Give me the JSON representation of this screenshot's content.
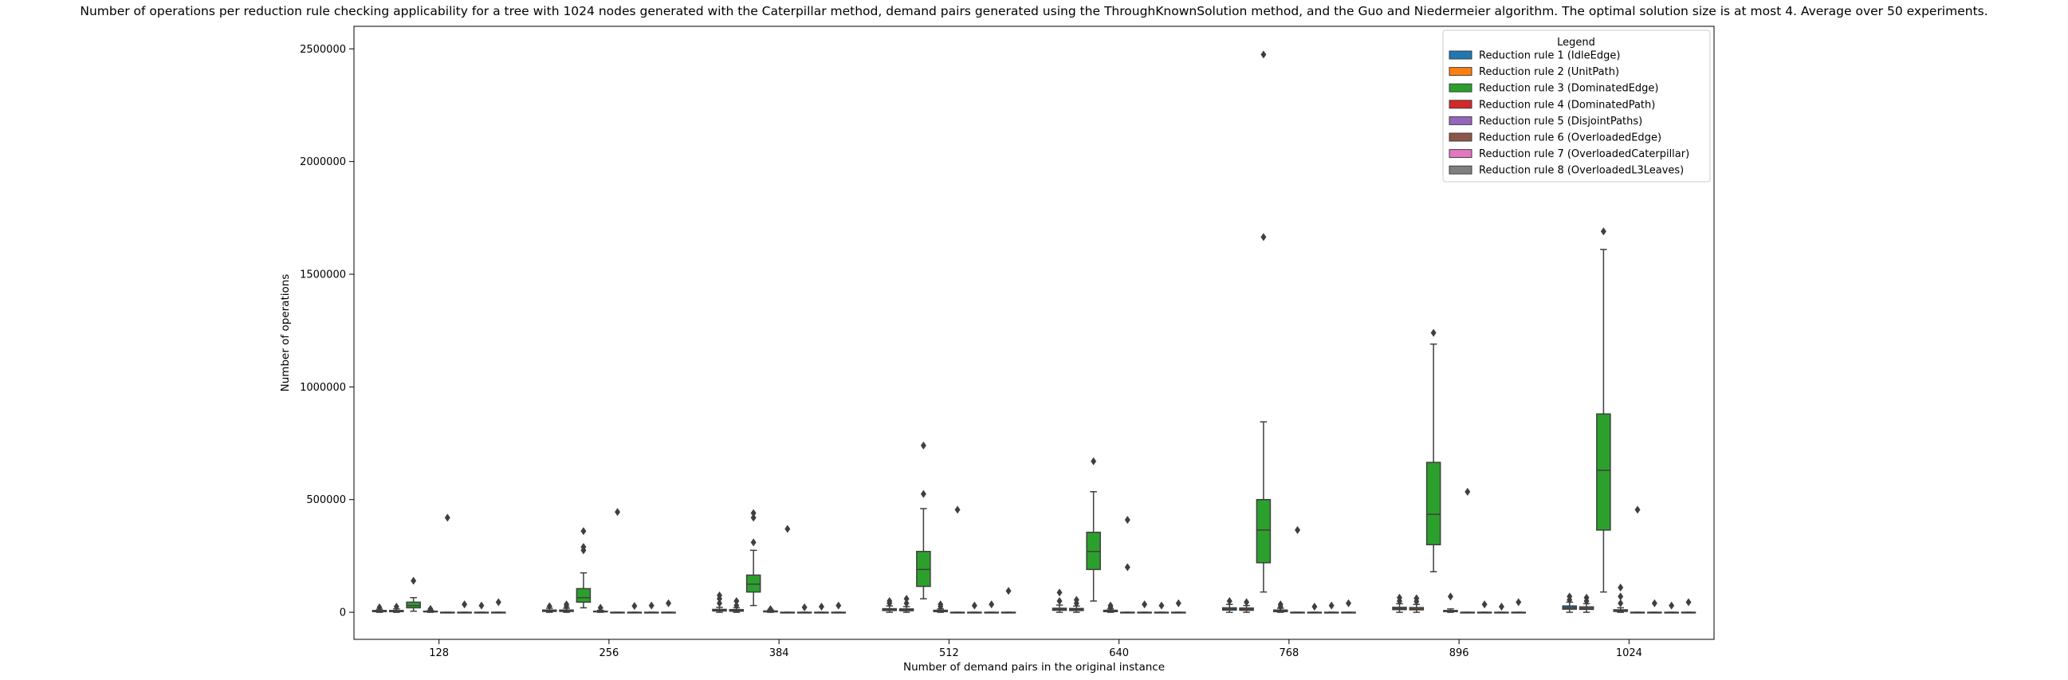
{
  "chart_data": {
    "type": "box",
    "title": "Number of operations per reduction rule checking applicability for a tree with 1024 nodes generated with the Caterpillar method, demand pairs generated using the ThroughKnownSolution method, and the Guo and Niedermeier algorithm. The optimal solution size is at most 4. Average over 50 experiments.",
    "xlabel": "Number of demand pairs in the original instance",
    "ylabel": "Number of operations",
    "ylim": [
      -120000,
      2600000
    ],
    "yticks": [
      0,
      500000,
      1000000,
      1500000,
      2000000,
      2500000
    ],
    "ytick_labels": [
      "0",
      "500000",
      "1000000",
      "1500000",
      "2000000",
      "2500000"
    ],
    "categories": [
      "128",
      "256",
      "384",
      "512",
      "640",
      "768",
      "896",
      "1024"
    ],
    "legend": {
      "title": "Legend",
      "placement": "top-right",
      "entries": [
        "Reduction rule 1 (IdleEdge)",
        "Reduction rule 2 (UnitPath)",
        "Reduction rule 3 (DominatedEdge)",
        "Reduction rule 4 (DominatedPath)",
        "Reduction rule 5 (DisjointPaths)",
        "Reduction rule 6 (OverloadedEdge)",
        "Reduction rule 7 (OverloadedCaterpillar)",
        "Reduction rule 8 (OverloadedL3Leaves)"
      ]
    },
    "series": [
      {
        "color": "#1f77b4",
        "boxes": [
          {
            "q1": 3000,
            "median": 5000,
            "q3": 8000,
            "whislo": 0,
            "whishi": 14000,
            "fliers": [
              22000
            ]
          },
          {
            "q1": 4000,
            "median": 7000,
            "q3": 10000,
            "whislo": 0,
            "whishi": 18000,
            "fliers": [
              27000
            ]
          },
          {
            "q1": 6000,
            "median": 9000,
            "q3": 13000,
            "whislo": 0,
            "whishi": 22000,
            "fliers": [
              40000,
              60000,
              75000
            ]
          },
          {
            "q1": 8000,
            "median": 11000,
            "q3": 16000,
            "whislo": 0,
            "whishi": 28000,
            "fliers": [
              40000,
              50000
            ]
          },
          {
            "q1": 9000,
            "median": 13000,
            "q3": 18000,
            "whislo": 0,
            "whishi": 32000,
            "fliers": [
              50000,
              88000
            ]
          },
          {
            "q1": 10000,
            "median": 14000,
            "q3": 20000,
            "whislo": 0,
            "whishi": 35000,
            "fliers": [
              50000
            ]
          },
          {
            "q1": 12000,
            "median": 16000,
            "q3": 22000,
            "whislo": 0,
            "whishi": 38000,
            "fliers": [
              50000,
              65000
            ]
          },
          {
            "q1": 14000,
            "median": 20000,
            "q3": 28000,
            "whislo": 0,
            "whishi": 45000,
            "fliers": [
              55000,
              70000
            ]
          }
        ]
      },
      {
        "color": "#ff7f0e",
        "boxes": [
          {
            "q1": 3000,
            "median": 5000,
            "q3": 8000,
            "whislo": 0,
            "whishi": 15000,
            "fliers": [
              25000
            ]
          },
          {
            "q1": 4000,
            "median": 7000,
            "q3": 10000,
            "whislo": 0,
            "whishi": 18000,
            "fliers": [
              26000,
              35000
            ]
          },
          {
            "q1": 5000,
            "median": 8000,
            "q3": 12000,
            "whislo": 0,
            "whishi": 20000,
            "fliers": [
              30000,
              50000
            ]
          },
          {
            "q1": 7000,
            "median": 10000,
            "q3": 15000,
            "whislo": 0,
            "whishi": 25000,
            "fliers": [
              40000,
              60000
            ]
          },
          {
            "q1": 8000,
            "median": 12000,
            "q3": 17000,
            "whislo": 0,
            "whishi": 28000,
            "fliers": [
              40000,
              55000
            ]
          },
          {
            "q1": 9000,
            "median": 13000,
            "q3": 19000,
            "whislo": 0,
            "whishi": 30000,
            "fliers": [
              45000
            ]
          },
          {
            "q1": 11000,
            "median": 15000,
            "q3": 21000,
            "whislo": 0,
            "whishi": 35000,
            "fliers": [
              48000,
              62000
            ]
          },
          {
            "q1": 13000,
            "median": 18000,
            "q3": 24000,
            "whislo": 0,
            "whishi": 38000,
            "fliers": [
              50000,
              65000
            ]
          }
        ]
      },
      {
        "color": "#2ca02c",
        "boxes": [
          {
            "q1": 20000,
            "median": 30000,
            "q3": 45000,
            "whislo": 5000,
            "whishi": 65000,
            "fliers": [
              140000
            ]
          },
          {
            "q1": 45000,
            "median": 65000,
            "q3": 105000,
            "whislo": 20000,
            "whishi": 175000,
            "fliers": [
              275000,
              290000,
              360000
            ]
          },
          {
            "q1": 90000,
            "median": 125000,
            "q3": 165000,
            "whislo": 30000,
            "whishi": 275000,
            "fliers": [
              310000,
              420000,
              440000
            ]
          },
          {
            "q1": 115000,
            "median": 190000,
            "q3": 270000,
            "whislo": 60000,
            "whishi": 460000,
            "fliers": [
              525000,
              740000
            ]
          },
          {
            "q1": 190000,
            "median": 270000,
            "q3": 355000,
            "whislo": 50000,
            "whishi": 535000,
            "fliers": [
              670000
            ]
          },
          {
            "q1": 220000,
            "median": 365000,
            "q3": 500000,
            "whislo": 90000,
            "whishi": 845000,
            "fliers": [
              1665000,
              2475000
            ]
          },
          {
            "q1": 300000,
            "median": 435000,
            "q3": 665000,
            "whislo": 180000,
            "whishi": 1190000,
            "fliers": [
              1240000
            ]
          },
          {
            "q1": 365000,
            "median": 630000,
            "q3": 880000,
            "whislo": 90000,
            "whishi": 1610000,
            "fliers": [
              1690000
            ]
          }
        ]
      },
      {
        "color": "#d62728",
        "boxes": [
          {
            "q1": 2000,
            "median": 3000,
            "q3": 5000,
            "whislo": 0,
            "whishi": 9000,
            "fliers": [
              15000
            ]
          },
          {
            "q1": 2000,
            "median": 3000,
            "q3": 5000,
            "whislo": 0,
            "whishi": 9000,
            "fliers": [
              20000
            ]
          },
          {
            "q1": 2000,
            "median": 3000,
            "q3": 6000,
            "whislo": 0,
            "whishi": 10000,
            "fliers": [
              14000
            ]
          },
          {
            "q1": 3000,
            "median": 5000,
            "q3": 9000,
            "whislo": 0,
            "whishi": 15000,
            "fliers": [
              25000,
              35000
            ]
          },
          {
            "q1": 3000,
            "median": 5000,
            "q3": 9000,
            "whislo": 0,
            "whishi": 15000,
            "fliers": [
              22000,
              30000
            ]
          },
          {
            "q1": 3000,
            "median": 6000,
            "q3": 10000,
            "whislo": 0,
            "whishi": 18000,
            "fliers": [
              25000,
              35000
            ]
          },
          {
            "q1": 3000,
            "median": 5000,
            "q3": 8000,
            "whislo": 0,
            "whishi": 15000,
            "fliers": [
              70000
            ]
          },
          {
            "q1": 4000,
            "median": 7000,
            "q3": 11000,
            "whislo": 0,
            "whishi": 20000,
            "fliers": [
              40000,
              70000,
              110000
            ]
          }
        ]
      },
      {
        "color": "#9467bd",
        "boxes": [
          {
            "q1": 0,
            "median": 0,
            "q3": 0,
            "whislo": 0,
            "whishi": 0,
            "fliers": [
              420000
            ]
          },
          {
            "q1": 0,
            "median": 0,
            "q3": 0,
            "whislo": 0,
            "whishi": 0,
            "fliers": [
              445000
            ]
          },
          {
            "q1": 0,
            "median": 0,
            "q3": 0,
            "whislo": 0,
            "whishi": 0,
            "fliers": [
              370000
            ]
          },
          {
            "q1": 0,
            "median": 0,
            "q3": 0,
            "whislo": 0,
            "whishi": 0,
            "fliers": [
              455000
            ]
          },
          {
            "q1": 0,
            "median": 0,
            "q3": 0,
            "whislo": 0,
            "whishi": 0,
            "fliers": [
              410000,
              200000
            ]
          },
          {
            "q1": 0,
            "median": 0,
            "q3": 0,
            "whislo": 0,
            "whishi": 0,
            "fliers": [
              365000
            ]
          },
          {
            "q1": 0,
            "median": 0,
            "q3": 0,
            "whislo": 0,
            "whishi": 0,
            "fliers": [
              535000
            ]
          },
          {
            "q1": 0,
            "median": 0,
            "q3": 0,
            "whislo": 0,
            "whishi": 0,
            "fliers": [
              455000
            ]
          }
        ]
      },
      {
        "color": "#8c564b",
        "boxes": [
          {
            "q1": 0,
            "median": 0,
            "q3": 0,
            "whislo": 0,
            "whishi": 0,
            "fliers": [
              35000
            ]
          },
          {
            "q1": 0,
            "median": 0,
            "q3": 0,
            "whislo": 0,
            "whishi": 0,
            "fliers": [
              28000
            ]
          },
          {
            "q1": 0,
            "median": 0,
            "q3": 0,
            "whislo": 0,
            "whishi": 0,
            "fliers": [
              22000
            ]
          },
          {
            "q1": 0,
            "median": 0,
            "q3": 0,
            "whislo": 0,
            "whishi": 0,
            "fliers": [
              30000
            ]
          },
          {
            "q1": 0,
            "median": 0,
            "q3": 0,
            "whislo": 0,
            "whishi": 0,
            "fliers": [
              35000
            ]
          },
          {
            "q1": 0,
            "median": 0,
            "q3": 0,
            "whislo": 0,
            "whishi": 0,
            "fliers": [
              25000
            ]
          },
          {
            "q1": 0,
            "median": 0,
            "q3": 0,
            "whislo": 0,
            "whishi": 0,
            "fliers": [
              35000
            ]
          },
          {
            "q1": 0,
            "median": 0,
            "q3": 0,
            "whislo": 0,
            "whishi": 0,
            "fliers": [
              40000
            ]
          }
        ]
      },
      {
        "color": "#e377c2",
        "boxes": [
          {
            "q1": 0,
            "median": 0,
            "q3": 0,
            "whislo": 0,
            "whishi": 0,
            "fliers": [
              30000
            ]
          },
          {
            "q1": 0,
            "median": 0,
            "q3": 0,
            "whislo": 0,
            "whishi": 0,
            "fliers": [
              30000
            ]
          },
          {
            "q1": 0,
            "median": 0,
            "q3": 0,
            "whislo": 0,
            "whishi": 0,
            "fliers": [
              25000
            ]
          },
          {
            "q1": 0,
            "median": 0,
            "q3": 0,
            "whislo": 0,
            "whishi": 0,
            "fliers": [
              35000
            ]
          },
          {
            "q1": 0,
            "median": 0,
            "q3": 0,
            "whislo": 0,
            "whishi": 0,
            "fliers": [
              30000
            ]
          },
          {
            "q1": 0,
            "median": 0,
            "q3": 0,
            "whislo": 0,
            "whishi": 0,
            "fliers": [
              30000
            ]
          },
          {
            "q1": 0,
            "median": 0,
            "q3": 0,
            "whislo": 0,
            "whishi": 0,
            "fliers": [
              25000
            ]
          },
          {
            "q1": 0,
            "median": 0,
            "q3": 0,
            "whislo": 0,
            "whishi": 0,
            "fliers": [
              30000
            ]
          }
        ]
      },
      {
        "color": "#7f7f7f",
        "boxes": [
          {
            "q1": 0,
            "median": 0,
            "q3": 0,
            "whislo": 0,
            "whishi": 0,
            "fliers": [
              45000
            ]
          },
          {
            "q1": 0,
            "median": 0,
            "q3": 0,
            "whislo": 0,
            "whishi": 0,
            "fliers": [
              40000
            ]
          },
          {
            "q1": 0,
            "median": 0,
            "q3": 0,
            "whislo": 0,
            "whishi": 0,
            "fliers": [
              30000
            ]
          },
          {
            "q1": 0,
            "median": 0,
            "q3": 0,
            "whislo": 0,
            "whishi": 0,
            "fliers": [
              95000
            ]
          },
          {
            "q1": 0,
            "median": 0,
            "q3": 0,
            "whislo": 0,
            "whishi": 0,
            "fliers": [
              40000
            ]
          },
          {
            "q1": 0,
            "median": 0,
            "q3": 0,
            "whislo": 0,
            "whishi": 0,
            "fliers": [
              40000
            ]
          },
          {
            "q1": 0,
            "median": 0,
            "q3": 0,
            "whislo": 0,
            "whishi": 0,
            "fliers": [
              45000
            ]
          },
          {
            "q1": 0,
            "median": 0,
            "q3": 0,
            "whislo": 0,
            "whishi": 0,
            "fliers": [
              45000
            ]
          }
        ]
      }
    ]
  }
}
